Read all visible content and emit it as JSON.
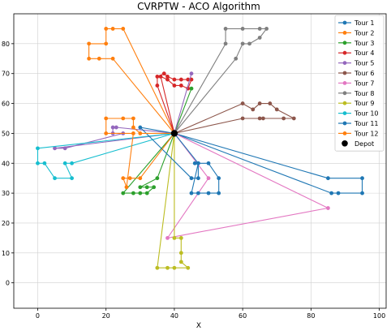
{
  "chart_data": {
    "type": "line",
    "title": "CVRPTW - ACO Algorithm",
    "xlabel": "X",
    "ylabel": "",
    "xlim": [
      -7,
      102
    ],
    "ylim": [
      -8.5,
      90
    ],
    "xticks": [
      0,
      20,
      40,
      60,
      80,
      100
    ],
    "yticks": [
      0,
      10,
      20,
      30,
      40,
      50,
      60,
      70,
      80
    ],
    "grid": true,
    "legend_position": "top-right",
    "depot": {
      "name": "Depot",
      "x": 40,
      "y": 50,
      "color": "#000000"
    },
    "series": [
      {
        "name": "Tour 1",
        "color": "#1f77b4",
        "points": [
          [
            40,
            50
          ],
          [
            85,
            35
          ],
          [
            95,
            35
          ],
          [
            95,
            30
          ],
          [
            88,
            30
          ],
          [
            86,
            30
          ],
          [
            40,
            50
          ]
        ]
      },
      {
        "name": "Tour 2",
        "color": "#ff7f0e",
        "points": [
          [
            40,
            50
          ],
          [
            25,
            85
          ],
          [
            22,
            85
          ],
          [
            20,
            85
          ],
          [
            20,
            80
          ],
          [
            15,
            80
          ],
          [
            15,
            75
          ],
          [
            18,
            75
          ],
          [
            22,
            75
          ],
          [
            40,
            50
          ]
        ]
      },
      {
        "name": "Tour 3",
        "color": "#2ca02c",
        "points": [
          [
            40,
            50
          ],
          [
            25,
            30
          ],
          [
            28,
            30
          ],
          [
            30,
            30
          ],
          [
            32,
            30
          ],
          [
            34,
            32
          ],
          [
            32,
            32
          ],
          [
            30,
            32
          ],
          [
            35,
            35
          ],
          [
            45,
            65
          ],
          [
            40,
            50
          ]
        ]
      },
      {
        "name": "Tour 4",
        "color": "#d62728",
        "points": [
          [
            40,
            50
          ],
          [
            35,
            66
          ],
          [
            35,
            69
          ],
          [
            37,
            70
          ],
          [
            38,
            69
          ],
          [
            40,
            68
          ],
          [
            42,
            68
          ],
          [
            44,
            68
          ],
          [
            45,
            68
          ],
          [
            44,
            65
          ],
          [
            42,
            66
          ],
          [
            40,
            66
          ],
          [
            38,
            68
          ],
          [
            36,
            69
          ],
          [
            40,
            50
          ]
        ]
      },
      {
        "name": "Tour 5",
        "color": "#9467bd",
        "points": [
          [
            40,
            50
          ],
          [
            23,
            52
          ],
          [
            22,
            52
          ],
          [
            22,
            50
          ],
          [
            25,
            50
          ],
          [
            8,
            45
          ],
          [
            5,
            45
          ],
          [
            40,
            50
          ],
          [
            45,
            70
          ],
          [
            40,
            50
          ]
        ]
      },
      {
        "name": "Tour 6",
        "color": "#8c564b",
        "points": [
          [
            40,
            50
          ],
          [
            60,
            60
          ],
          [
            63,
            58
          ],
          [
            65,
            60
          ],
          [
            68,
            60
          ],
          [
            70,
            58
          ],
          [
            75,
            55
          ],
          [
            72,
            55
          ],
          [
            66,
            55
          ],
          [
            65,
            55
          ],
          [
            60,
            55
          ],
          [
            40,
            50
          ]
        ]
      },
      {
        "name": "Tour 7",
        "color": "#e377c2",
        "points": [
          [
            40,
            50
          ],
          [
            50,
            35
          ],
          [
            38,
            15
          ],
          [
            85,
            25
          ],
          [
            40,
            50
          ]
        ]
      },
      {
        "name": "Tour 8",
        "color": "#7f7f7f",
        "points": [
          [
            40,
            50
          ],
          [
            55,
            80
          ],
          [
            55,
            85
          ],
          [
            60,
            85
          ],
          [
            65,
            85
          ],
          [
            67,
            85
          ],
          [
            65,
            82
          ],
          [
            62,
            80
          ],
          [
            60,
            80
          ],
          [
            58,
            75
          ],
          [
            40,
            50
          ]
        ]
      },
      {
        "name": "Tour 9",
        "color": "#bcbd22",
        "points": [
          [
            40,
            50
          ],
          [
            40,
            15
          ],
          [
            42,
            15
          ],
          [
            42,
            10
          ],
          [
            42,
            7
          ],
          [
            44,
            5
          ],
          [
            40,
            5
          ],
          [
            38,
            5
          ],
          [
            35,
            5
          ],
          [
            40,
            50
          ]
        ]
      },
      {
        "name": "Tour 10",
        "color": "#17becf",
        "points": [
          [
            40,
            50
          ],
          [
            10,
            40
          ],
          [
            8,
            40
          ],
          [
            10,
            35
          ],
          [
            5,
            35
          ],
          [
            2,
            40
          ],
          [
            0,
            40
          ],
          [
            0,
            45
          ],
          [
            40,
            50
          ]
        ]
      },
      {
        "name": "Tour 11",
        "color": "#1f77b4",
        "points": [
          [
            40,
            50
          ],
          [
            30,
            52
          ],
          [
            45,
            35
          ],
          [
            47,
            35
          ],
          [
            47,
            40
          ],
          [
            46,
            40
          ],
          [
            50,
            40
          ],
          [
            53,
            35
          ],
          [
            53,
            30
          ],
          [
            50,
            30
          ],
          [
            47,
            30
          ],
          [
            45,
            30
          ],
          [
            47,
            40
          ],
          [
            40,
            50
          ]
        ]
      },
      {
        "name": "Tour 12",
        "color": "#ff7f0e",
        "points": [
          [
            40,
            50
          ],
          [
            30,
            50
          ],
          [
            28,
            52
          ],
          [
            28,
            55
          ],
          [
            25,
            55
          ],
          [
            20,
            55
          ],
          [
            20,
            50
          ],
          [
            28,
            50
          ],
          [
            26,
            32
          ],
          [
            25,
            35
          ],
          [
            27,
            35
          ],
          [
            30,
            35
          ],
          [
            40,
            50
          ]
        ]
      }
    ]
  }
}
